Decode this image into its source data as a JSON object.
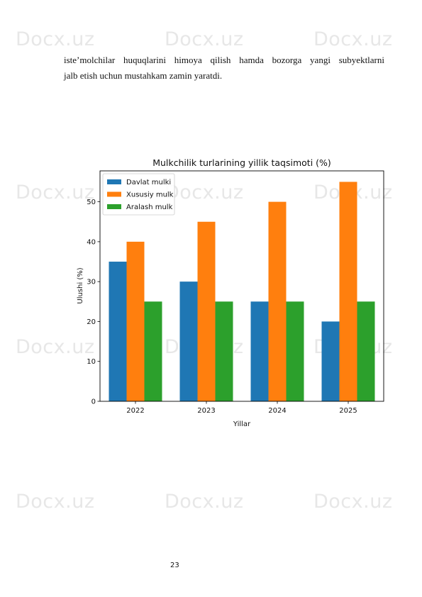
{
  "watermark": "Docx.uz",
  "paragraph": {
    "line1": "iste’molchilar huquqlarini himoya qilish hamda bozorga yangi subyektlarni",
    "line2": "jalb etish uchun mustahkam zamin yaratdi."
  },
  "chart_data": {
    "type": "bar",
    "title": "Mulkchilik turlarining yillik taqsimoti (%)",
    "xlabel": "Yillar",
    "ylabel": "Ulushi (%)",
    "categories": [
      "2022",
      "2023",
      "2024",
      "2025"
    ],
    "series": [
      {
        "name": "Davlat mulki",
        "color": "#1f77b4",
        "values": [
          35,
          30,
          25,
          20
        ]
      },
      {
        "name": "Xususiy mulk",
        "color": "#ff7f0e",
        "values": [
          40,
          45,
          50,
          55
        ]
      },
      {
        "name": "Aralash mulk",
        "color": "#2ca02c",
        "values": [
          25,
          25,
          25,
          25
        ]
      }
    ],
    "yticks": [
      0,
      10,
      20,
      30,
      40,
      50
    ],
    "ylim": [
      0,
      57.75
    ],
    "legend": "top-left",
    "grid": false
  },
  "page_number": "23"
}
